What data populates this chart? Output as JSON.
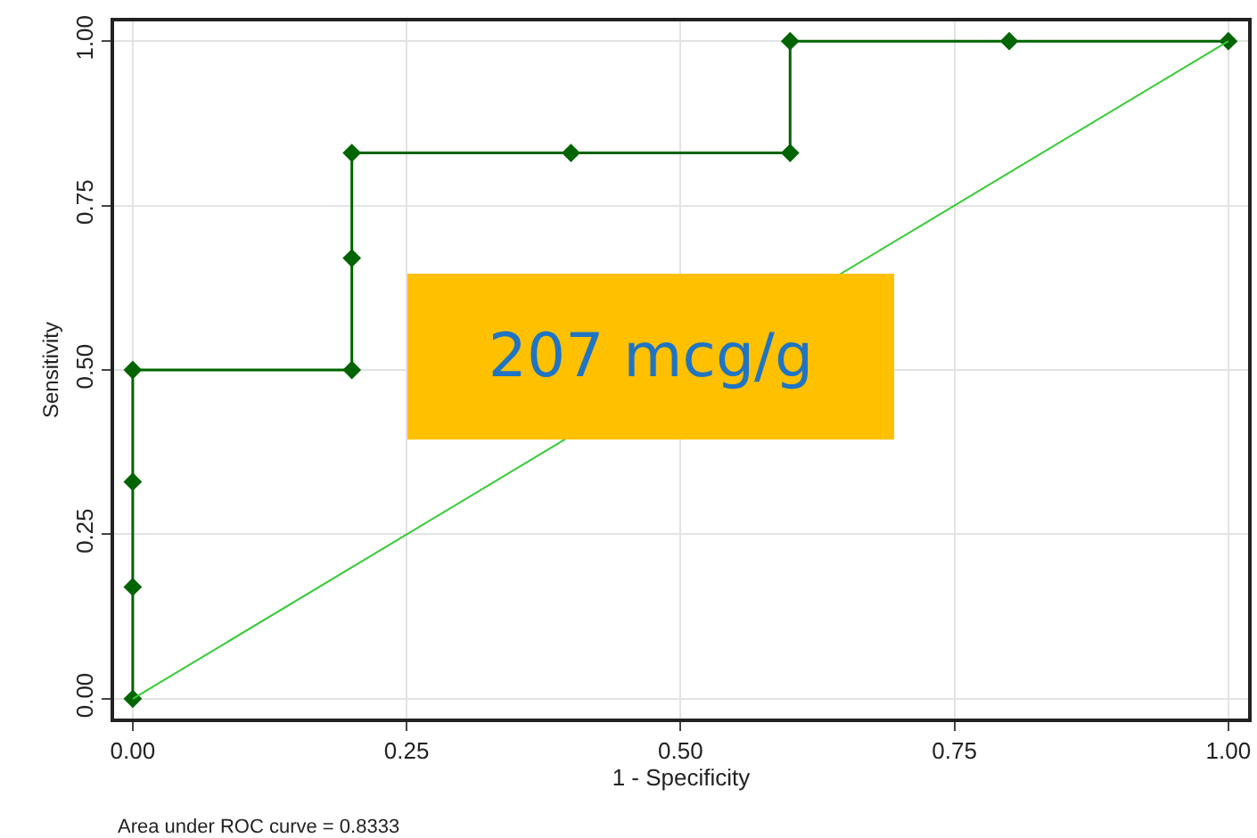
{
  "chart_data": {
    "type": "line",
    "xlabel": "1 - Specificity",
    "ylabel": "Sensitivity",
    "series": [
      {
        "color": "#006400",
        "x": [
          0,
          0,
          0,
          0,
          0.2,
          0.2,
          0.2,
          0.4,
          0.6,
          0.6,
          0.8,
          1
        ],
        "values": [
          0,
          0.17,
          0.33,
          0.5,
          0.5,
          0.67,
          0.83,
          0.83,
          0.83,
          1,
          1,
          1
        ],
        "marker": "diamond"
      },
      {
        "color": "#33cc33",
        "x": [
          0,
          1
        ],
        "values": [
          0,
          1
        ],
        "marker": "none"
      }
    ],
    "xlim": [
      -0.017,
      1.018
    ],
    "ylim": [
      -0.03,
      1.03
    ],
    "xticks": [
      {
        "value": 0,
        "label": "0.00"
      },
      {
        "value": 0.25,
        "label": "0.25"
      },
      {
        "value": 0.5,
        "label": "0.50"
      },
      {
        "value": 0.75,
        "label": "0.75"
      },
      {
        "value": 1,
        "label": "1.00"
      }
    ],
    "yticks": [
      {
        "value": 0,
        "label": "0.00"
      },
      {
        "value": 0.25,
        "label": "0.25"
      },
      {
        "value": 0.5,
        "label": "0.50"
      },
      {
        "value": 0.75,
        "label": "0.75"
      },
      {
        "value": 1,
        "label": "1.00"
      }
    ],
    "grid": true,
    "line_style": "solid",
    "annotations": [
      "207 mcg/g",
      "Area under ROC curve = 0.8333"
    ]
  }
}
